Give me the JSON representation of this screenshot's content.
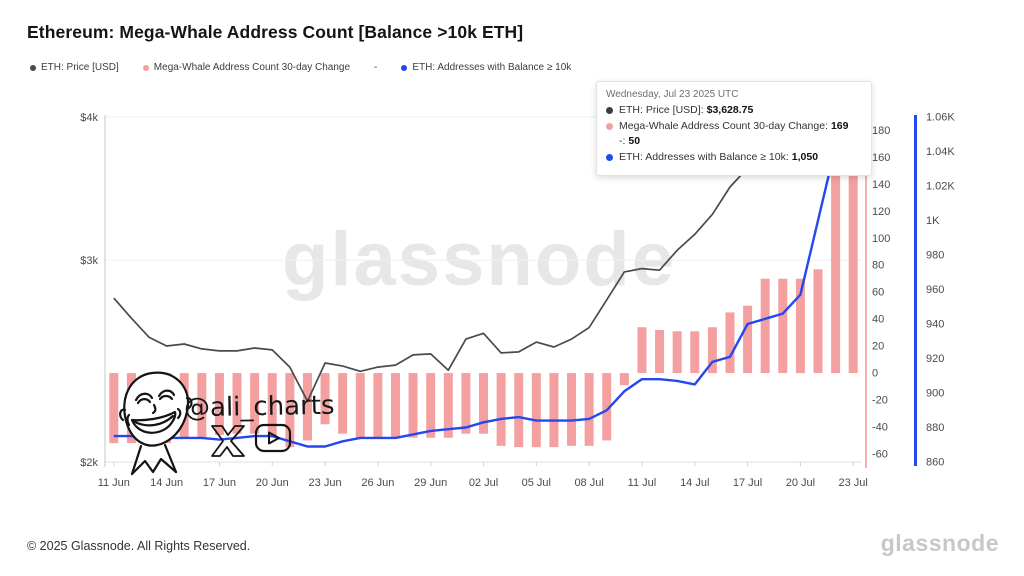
{
  "title": "Ethereum: Mega-Whale Address Count [Balance >10k ETH]",
  "legend": {
    "items": [
      {
        "label": "ETH: Price [USD]",
        "color": "#4a4a4a"
      },
      {
        "label": "Mega-Whale Address Count 30-day Change",
        "color": "#F5A0A0"
      },
      {
        "label": "-",
        "color": null
      },
      {
        "label": "ETH: Addresses with Balance ≥ 10k",
        "color": "#2547F0"
      }
    ]
  },
  "tooltip": {
    "date": "Wednesday, Jul 23 2025 UTC",
    "rows": [
      {
        "dot": "#3d3d3d",
        "label": "ETH: Price [USD]:",
        "value": "$3,628.75"
      },
      {
        "dot": "#F5A0A0",
        "label": "Mega-Whale Address Count 30-day Change:",
        "value": "169"
      },
      {
        "dot": null,
        "label": "-:",
        "value": "50"
      },
      {
        "dot": "#1d4cf2",
        "label": "ETH: Addresses with Balance ≥ 10k:",
        "value": "1,050"
      }
    ]
  },
  "watermark": "glassnode",
  "signature": "@ali_charts",
  "footer": {
    "copyright": "© 2025 Glassnode. All Rights Reserved.",
    "brand": "glassnode"
  },
  "chart_data": {
    "type": "mixed",
    "dates": [
      "Jun 11",
      "Jun 12",
      "Jun 13",
      "Jun 14",
      "Jun 15",
      "Jun 16",
      "Jun 17",
      "Jun 18",
      "Jun 19",
      "Jun 20",
      "Jun 21",
      "Jun 22",
      "Jun 23",
      "Jun 24",
      "Jun 25",
      "Jun 26",
      "Jun 27",
      "Jun 28",
      "Jun 29",
      "Jun 30",
      "Jul 01",
      "Jul 02",
      "Jul 03",
      "Jul 04",
      "Jul 05",
      "Jul 06",
      "Jul 07",
      "Jul 08",
      "Jul 09",
      "Jul 10",
      "Jul 11",
      "Jul 12",
      "Jul 13",
      "Jul 14",
      "Jul 15",
      "Jul 16",
      "Jul 17",
      "Jul 18",
      "Jul 19",
      "Jul 20",
      "Jul 21",
      "Jul 22",
      "Jul 23"
    ],
    "x_ticks": [
      {
        "label": "11 Jun",
        "day_index": 0
      },
      {
        "label": "14 Jun",
        "day_index": 3
      },
      {
        "label": "17 Jun",
        "day_index": 6
      },
      {
        "label": "20 Jun",
        "day_index": 9
      },
      {
        "label": "23 Jun",
        "day_index": 12
      },
      {
        "label": "26 Jun",
        "day_index": 15
      },
      {
        "label": "29 Jun",
        "day_index": 18
      },
      {
        "label": "02 Jul",
        "day_index": 21
      },
      {
        "label": "05 Jul",
        "day_index": 24
      },
      {
        "label": "08 Jul",
        "day_index": 27
      },
      {
        "label": "11 Jul",
        "day_index": 30
      },
      {
        "label": "14 Jul",
        "day_index": 33
      },
      {
        "label": "17 Jul",
        "day_index": 36
      },
      {
        "label": "20 Jul",
        "day_index": 39
      },
      {
        "label": "23 Jul",
        "day_index": 42
      }
    ],
    "axes": {
      "price": {
        "side": "left",
        "scale": "log",
        "min": 2000,
        "max": 4000,
        "ticks": [
          {
            "label": "$4k",
            "value": 4000
          },
          {
            "label": "$3k",
            "value": 3000
          },
          {
            "label": "$2k",
            "value": 2000
          }
        ]
      },
      "change": {
        "side": "right-inner",
        "scale": "linear",
        "min": -66,
        "max": 190,
        "zero_line": 0,
        "axis_color": "#F0908E",
        "ticks": [
          {
            "label": "180",
            "value": 180
          },
          {
            "label": "160",
            "value": 160
          },
          {
            "label": "140",
            "value": 140
          },
          {
            "label": "120",
            "value": 120
          },
          {
            "label": "100",
            "value": 100
          },
          {
            "label": "80",
            "value": 80
          },
          {
            "label": "60",
            "value": 60
          },
          {
            "label": "40",
            "value": 40
          },
          {
            "label": "20",
            "value": 20
          },
          {
            "label": "0",
            "value": 0
          },
          {
            "label": "-20",
            "value": -20
          },
          {
            "label": "-40",
            "value": -40
          },
          {
            "label": "-60",
            "value": -60
          }
        ]
      },
      "count": {
        "side": "right-outer",
        "scale": "linear",
        "min": 860,
        "max": 1060,
        "axis_color": "#2547F0",
        "ticks": [
          {
            "label": "1.06K",
            "value": 1060
          },
          {
            "label": "1.04K",
            "value": 1040
          },
          {
            "label": "1.02K",
            "value": 1020
          },
          {
            "label": "1K",
            "value": 1000
          },
          {
            "label": "980",
            "value": 980
          },
          {
            "label": "960",
            "value": 960
          },
          {
            "label": "940",
            "value": 940
          },
          {
            "label": "920",
            "value": 920
          },
          {
            "label": "900",
            "value": 900
          },
          {
            "label": "880",
            "value": 880
          },
          {
            "label": "860",
            "value": 860
          }
        ]
      }
    },
    "series": [
      {
        "name": "ETH: Price [USD]",
        "type": "line",
        "axis": "price",
        "color": "#4a4a4a",
        "values": [
          2780,
          2670,
          2570,
          2525,
          2535,
          2510,
          2500,
          2500,
          2515,
          2505,
          2420,
          2260,
          2440,
          2425,
          2400,
          2420,
          2430,
          2480,
          2485,
          2405,
          2560,
          2590,
          2490,
          2495,
          2545,
          2520,
          2560,
          2620,
          2770,
          2930,
          2950,
          2940,
          3060,
          3160,
          3290,
          3475,
          3610,
          3620,
          3625,
          3690,
          3740,
          3660,
          3629
        ]
      },
      {
        "name": "Mega-Whale Address Count 30-day Change",
        "type": "bar",
        "axis": "change",
        "color": "#F5A0A0",
        "values": [
          -52,
          -52,
          -52,
          -52,
          -48,
          -48,
          -46,
          -45,
          -45,
          -48,
          -55,
          -50,
          -38,
          -45,
          -48,
          -48,
          -48,
          -48,
          -48,
          -48,
          -45,
          -45,
          -54,
          -55,
          -55,
          -55,
          -54,
          -54,
          -50,
          -9,
          34,
          32,
          31,
          31,
          34,
          45,
          50,
          70,
          70,
          70,
          77,
          165,
          169
        ]
      },
      {
        "name": "ETH: Addresses with Balance ≥ 10k",
        "type": "line",
        "axis": "count",
        "color": "#2547F0",
        "values": [
          875,
          875,
          874,
          874,
          874,
          874,
          873,
          874,
          875,
          875,
          872,
          869,
          869,
          872,
          874,
          874,
          874,
          876,
          878,
          879,
          880,
          883,
          885,
          886,
          884,
          884,
          884,
          885,
          890,
          901,
          908,
          908,
          907,
          905,
          918,
          921,
          940,
          943,
          946,
          957,
          1000,
          1043,
          1050
        ]
      }
    ]
  }
}
